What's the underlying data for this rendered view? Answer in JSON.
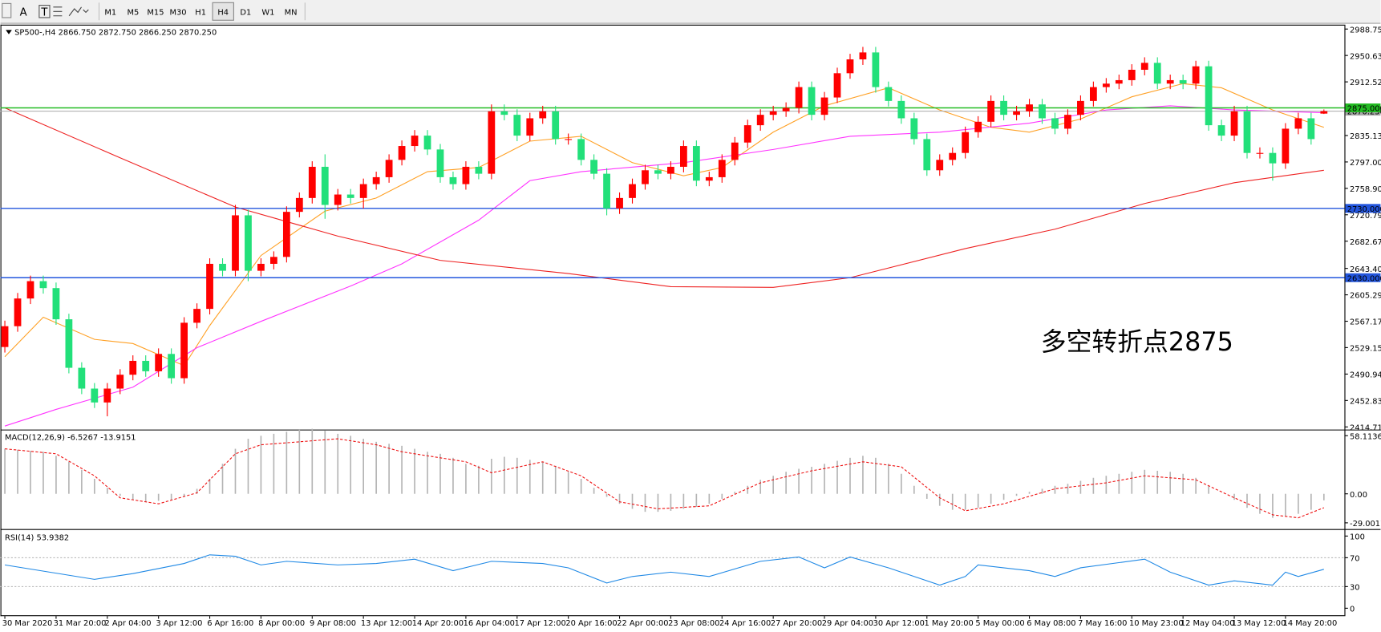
{
  "toolbar": {
    "tools": [
      "A",
      "T"
    ],
    "timeframes": [
      "M1",
      "M5",
      "M15",
      "M30",
      "H1",
      "H4",
      "D1",
      "W1",
      "MN"
    ],
    "active": "H4"
  },
  "chart_data": [
    {
      "type": "candlestick",
      "title": "SP500-,H4  2866.750 2872.750 2866.250 2870.250",
      "up_color": "#ff0000",
      "down_color": "#22e07a",
      "categories": [
        "30 Mar 2020",
        null,
        null,
        null,
        "31 Mar 20:00",
        null,
        null,
        null,
        "2 Apr 04:00",
        null,
        null,
        null,
        "3 Apr 12:00",
        null,
        null,
        null,
        "6 Apr 16:00",
        null,
        null,
        null,
        "8 Apr 00:00",
        null,
        null,
        null,
        "9 Apr 08:00",
        null,
        null,
        null,
        "13 Apr 12:00",
        null,
        null,
        null,
        "14 Apr 20:00",
        null,
        null,
        null,
        "16 Apr 04:00",
        null,
        null,
        null,
        "17 Apr 12:00",
        null,
        null,
        null,
        "20 Apr 16:00",
        null,
        null,
        null,
        "22 Apr 00:00",
        null,
        null,
        null,
        "23 Apr 08:00",
        null,
        null,
        null,
        "24 Apr 16:00",
        null,
        null,
        null,
        "27 Apr 20:00",
        null,
        null,
        null,
        "29 Apr 04:00",
        null,
        null,
        null,
        "30 Apr 12:00",
        null,
        null,
        null,
        "1 May 20:00",
        null,
        null,
        null,
        "5 May 00:00",
        null,
        null,
        null,
        "6 May 08:00",
        null,
        null,
        null,
        "7 May 16:00",
        null,
        null,
        null,
        "10 May 23:00",
        null,
        null,
        null,
        "12 May 04:00",
        null,
        null,
        null,
        "13 May 12:00",
        null,
        null,
        null,
        "14 May 20:00",
        null,
        null,
        null
      ],
      "candles": {
        "open": [
          2530,
          2560,
          2600,
          2625,
          2615,
          2570,
          2500,
          2470,
          2450,
          2470,
          2490,
          2510,
          2495,
          2520,
          2485,
          2565,
          2585,
          2650,
          2640,
          2720,
          2640,
          2650,
          2660,
          2725,
          2745,
          2790,
          2735,
          2750,
          2745,
          2765,
          2775,
          2800,
          2820,
          2835,
          2815,
          2775,
          2765,
          2790,
          2780,
          2870,
          2865,
          2835,
          2860,
          2870,
          2830,
          2830,
          2800,
          2780,
          2730,
          2745,
          2765,
          2785,
          2780,
          2790,
          2820,
          2770,
          2775,
          2800,
          2825,
          2850,
          2865,
          2870,
          2875,
          2905,
          2865,
          2890,
          2925,
          2945,
          2955,
          2905,
          2885,
          2860,
          2830,
          2785,
          2800,
          2810,
          2840,
          2855,
          2885,
          2865,
          2870,
          2880,
          2860,
          2845,
          2865,
          2885,
          2905,
          2910,
          2915,
          2930,
          2940,
          2910,
          2915,
          2910,
          2935,
          2850,
          2835,
          2870,
          2810,
          2810,
          2795,
          2845,
          2860,
          2866.75
        ],
        "high": [
          2568,
          2608,
          2633,
          2633,
          2623,
          2578,
          2508,
          2478,
          2478,
          2498,
          2518,
          2518,
          2528,
          2528,
          2573,
          2593,
          2658,
          2658,
          2735,
          2728,
          2658,
          2668,
          2733,
          2753,
          2798,
          2808,
          2758,
          2758,
          2773,
          2783,
          2808,
          2828,
          2843,
          2843,
          2823,
          2783,
          2798,
          2798,
          2880,
          2880,
          2873,
          2868,
          2878,
          2878,
          2838,
          2838,
          2808,
          2788,
          2753,
          2773,
          2793,
          2793,
          2798,
          2828,
          2828,
          2783,
          2808,
          2833,
          2858,
          2873,
          2878,
          2883,
          2913,
          2913,
          2898,
          2933,
          2953,
          2963,
          2963,
          2913,
          2893,
          2868,
          2838,
          2808,
          2818,
          2848,
          2863,
          2893,
          2893,
          2878,
          2888,
          2888,
          2868,
          2873,
          2893,
          2913,
          2918,
          2923,
          2938,
          2948,
          2948,
          2923,
          2923,
          2943,
          2943,
          2858,
          2878,
          2878,
          2818,
          2818,
          2853,
          2868,
          2868,
          2872.75
        ],
        "low": [
          2522,
          2552,
          2592,
          2607,
          2562,
          2492,
          2462,
          2442,
          2430,
          2462,
          2482,
          2487,
          2487,
          2477,
          2477,
          2557,
          2577,
          2632,
          2632,
          2625,
          2632,
          2642,
          2652,
          2717,
          2737,
          2715,
          2727,
          2737,
          2730,
          2757,
          2767,
          2792,
          2812,
          2807,
          2767,
          2757,
          2757,
          2772,
          2772,
          2857,
          2827,
          2827,
          2852,
          2822,
          2822,
          2792,
          2772,
          2720,
          2722,
          2737,
          2757,
          2772,
          2772,
          2782,
          2762,
          2762,
          2767,
          2792,
          2817,
          2842,
          2857,
          2862,
          2867,
          2857,
          2857,
          2882,
          2917,
          2937,
          2897,
          2877,
          2852,
          2822,
          2777,
          2777,
          2792,
          2802,
          2832,
          2847,
          2857,
          2857,
          2862,
          2852,
          2837,
          2837,
          2857,
          2877,
          2897,
          2902,
          2907,
          2922,
          2902,
          2902,
          2902,
          2902,
          2842,
          2827,
          2827,
          2802,
          2802,
          2770,
          2787,
          2837,
          2822,
          2866.25
        ],
        "close": [
          2560,
          2600,
          2625,
          2615,
          2570,
          2500,
          2470,
          2450,
          2470,
          2490,
          2510,
          2495,
          2520,
          2485,
          2565,
          2585,
          2650,
          2640,
          2720,
          2640,
          2650,
          2660,
          2725,
          2745,
          2790,
          2735,
          2750,
          2745,
          2765,
          2775,
          2800,
          2820,
          2835,
          2815,
          2775,
          2765,
          2790,
          2780,
          2870,
          2865,
          2835,
          2860,
          2870,
          2830,
          2830,
          2800,
          2780,
          2730,
          2745,
          2765,
          2785,
          2780,
          2790,
          2820,
          2770,
          2775,
          2800,
          2825,
          2850,
          2865,
          2870,
          2875,
          2905,
          2865,
          2890,
          2925,
          2945,
          2955,
          2905,
          2885,
          2860,
          2830,
          2785,
          2800,
          2810,
          2840,
          2855,
          2885,
          2865,
          2870,
          2880,
          2860,
          2845,
          2865,
          2885,
          2905,
          2910,
          2915,
          2930,
          2940,
          2910,
          2915,
          2910,
          2935,
          2850,
          2835,
          2870,
          2810,
          2810,
          2795,
          2845,
          2860,
          2830,
          2870.25
        ]
      },
      "series": [
        {
          "color": "#ffa024",
          "x": [
            0,
            3,
            7,
            10,
            14,
            16,
            20,
            25,
            29,
            33,
            37,
            41,
            45,
            49,
            53,
            56,
            60,
            64,
            69,
            73,
            77,
            80,
            84,
            88,
            92,
            95,
            99,
            103
          ],
          "values": [
            2516,
            2573,
            2541,
            2535,
            2503,
            2561,
            2662,
            2726,
            2745,
            2783,
            2789,
            2827,
            2834,
            2796,
            2777,
            2789,
            2840,
            2878,
            2904,
            2872,
            2847,
            2840,
            2859,
            2891,
            2910,
            2904,
            2872,
            2847
          ]
        },
        {
          "color": "#ff33ff",
          "x": [
            0,
            4,
            10,
            15,
            20,
            27,
            31,
            37,
            41,
            45,
            53,
            60,
            66,
            73,
            80,
            86,
            91,
            96,
            103
          ],
          "values": [
            2416,
            2440,
            2472,
            2529,
            2567,
            2618,
            2650,
            2713,
            2770,
            2783,
            2796,
            2815,
            2834,
            2840,
            2853,
            2872,
            2878,
            2872,
            2868
          ]
        },
        {
          "color": "#ee2222",
          "x": [
            0,
            9,
            18,
            26,
            34,
            44,
            52,
            60,
            66,
            75,
            82,
            89,
            96,
            103
          ],
          "values": [
            2875,
            2803,
            2732,
            2690,
            2655,
            2636,
            2617,
            2616,
            2630,
            2672,
            2700,
            2737,
            2767,
            2785
          ]
        }
      ],
      "hlines": [
        {
          "value": 2875,
          "label": "2875.000",
          "color": "#22bb22"
        },
        {
          "value": 2730,
          "label": "2730.000",
          "color": "#2255dd"
        },
        {
          "value": 2630,
          "label": "2630.000",
          "color": "#2255dd"
        }
      ],
      "price_line": {
        "value": 2870.25,
        "label": "2870.250",
        "color": "#a8a8a8"
      },
      "annotation": {
        "text": "多空转折点2875",
        "color": "#e8231a"
      },
      "ylim": [
        2414.715,
        2988.75
      ],
      "yticks": [
        {
          "value": 2988.75,
          "label": "2988.750"
        },
        2950.635,
        {
          "value": 2912.52,
          "label": "2912.520"
        },
        2835.135,
        {
          "value": 2797,
          "label": "2797.000"
        },
        2758.905,
        {
          "value": 2720.79,
          "label": "2720.790"
        },
        2682.675,
        2643.405,
        {
          "value": 2605.29,
          "label": "2605.290"
        },
        2567.175,
        {
          "value": 2529.15,
          "label": "2529.150"
        },
        2490.945,
        {
          "value": 2452.83,
          "label": "2452.830"
        },
        2414.715
      ]
    },
    {
      "type": "macd",
      "title": "MACD(12,26,9) -6.5267 -13.9151",
      "hist_color": "#b4b4b4",
      "values": [
        45,
        44,
        43,
        42,
        38,
        32,
        24,
        15,
        6,
        -2,
        -6,
        -8,
        -7,
        -6,
        -3,
        5,
        15,
        30,
        45,
        55,
        58,
        60,
        62,
        64,
        65,
        63,
        60,
        58,
        55,
        52,
        50,
        48,
        45,
        42,
        40,
        36,
        30,
        28,
        35,
        37,
        36,
        34,
        32,
        28,
        22,
        15,
        6,
        -3,
        -10,
        -15,
        -18,
        -18,
        -17,
        -15,
        -13,
        -10,
        -5,
        2,
        8,
        14,
        18,
        22,
        25,
        27,
        30,
        33,
        36,
        38,
        36,
        30,
        20,
        8,
        -5,
        -12,
        -16,
        -16,
        -14,
        -10,
        -6,
        -2,
        2,
        5,
        8,
        10,
        13,
        16,
        18,
        20,
        22,
        24,
        23,
        22,
        20,
        16,
        8,
        0,
        -6,
        -14,
        -20,
        -24,
        -22,
        -20,
        -16,
        -6.5267
      ],
      "signal": {
        "color": "#ee1111",
        "x": [
          0,
          4,
          7,
          9,
          12,
          15,
          18,
          20,
          26,
          29,
          31,
          36,
          38,
          42,
          45,
          48,
          51,
          55,
          59,
          63,
          67,
          70,
          73,
          75,
          78,
          82,
          86,
          89,
          93,
          96,
          99,
          101,
          103
        ],
        "values": [
          45,
          40,
          18,
          -4,
          -10,
          1,
          40,
          49,
          55,
          49,
          42,
          32,
          21,
          32,
          18,
          -8,
          -15,
          -12,
          11,
          23,
          32,
          27,
          -4,
          -17,
          -10,
          5,
          11,
          18,
          14,
          -4,
          -21,
          -24,
          -13.9151
        ]
      },
      "ylim": [
        -34.3,
        61.6
      ],
      "yticks": [
        58.1136,
        {
          "value": 0,
          "label": "0.00"
        },
        -29.0017
      ]
    },
    {
      "type": "line",
      "title": "RSI(14) 53.9382",
      "color": "#1e88e5",
      "x": [
        0,
        7,
        10,
        14,
        16,
        18,
        20,
        22,
        26,
        29,
        32,
        35,
        38,
        42,
        44,
        47,
        49,
        52,
        55,
        59,
        62,
        64,
        66,
        69,
        71,
        73,
        75,
        76,
        80,
        82,
        84,
        89,
        91,
        94,
        96,
        99,
        100,
        101,
        103
      ],
      "values": [
        60,
        40,
        48,
        62,
        74,
        72,
        60,
        65,
        60,
        62,
        68,
        52,
        65,
        62,
        56,
        35,
        44,
        50,
        44,
        65,
        71,
        56,
        71,
        56,
        44,
        32,
        44,
        60,
        52,
        44,
        56,
        68,
        50,
        32,
        38,
        32,
        50,
        44,
        53.9382
      ],
      "levels": [
        70,
        30
      ],
      "ylim": [
        0,
        100
      ],
      "yticks": [
        100,
        70,
        30,
        0
      ]
    }
  ]
}
